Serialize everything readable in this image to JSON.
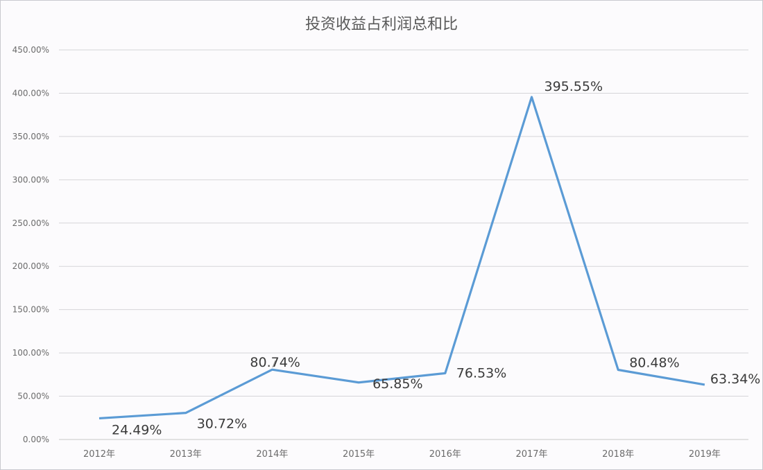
{
  "chart_data": {
    "type": "line",
    "title": "投资收益占利润总和比",
    "xlabel": "",
    "ylabel": "",
    "categories": [
      "2012年",
      "2013年",
      "2014年",
      "2015年",
      "2016年",
      "2017年",
      "2018年",
      "2019年"
    ],
    "series": [
      {
        "name": "投资收益占利润总和比",
        "values": [
          24.49,
          30.72,
          80.74,
          65.85,
          76.53,
          395.55,
          80.48,
          63.34
        ],
        "color": "#5b9bd5"
      }
    ],
    "data_labels": [
      "24.49%",
      "30.72%",
      "80.74%",
      "65.85%",
      "76.53%",
      "395.55%",
      "80.48%",
      "63.34%"
    ],
    "y_ticks": [
      "0.00%",
      "50.00%",
      "100.00%",
      "150.00%",
      "200.00%",
      "250.00%",
      "300.00%",
      "350.00%",
      "400.00%",
      "450.00%"
    ],
    "ylim": [
      0,
      450
    ],
    "grid": true,
    "legend": "none"
  }
}
